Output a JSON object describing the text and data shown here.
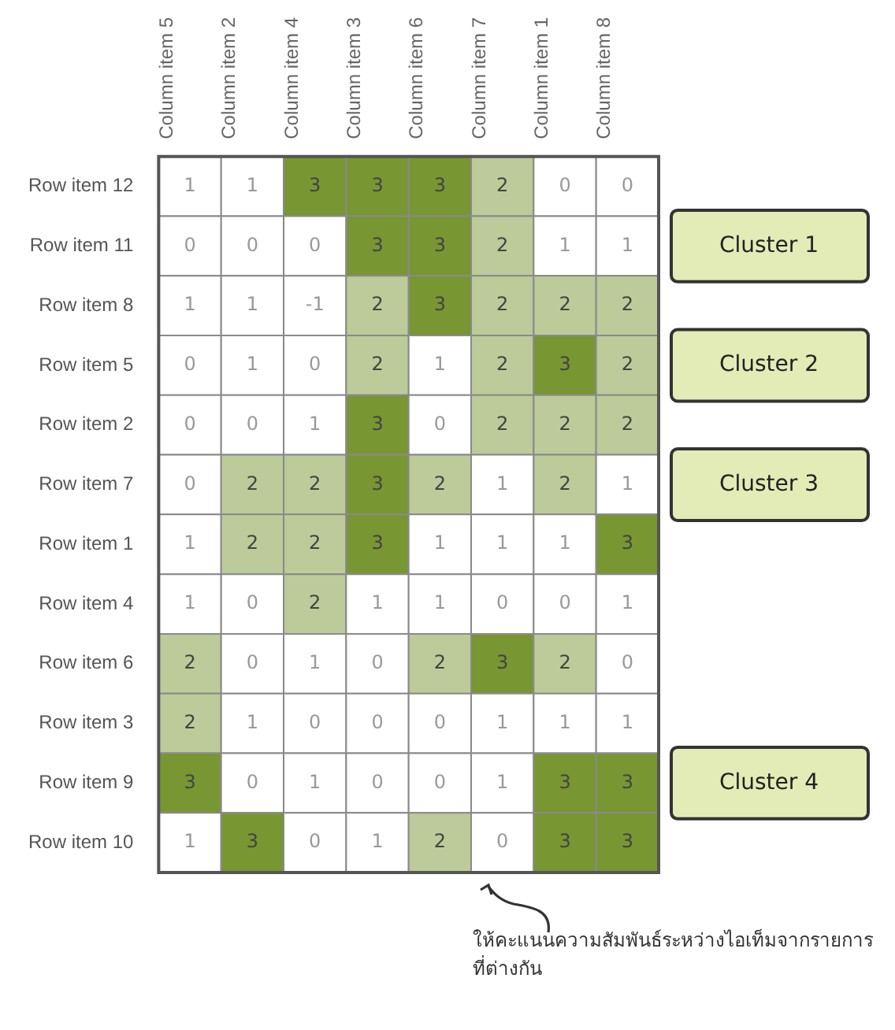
{
  "chart_data": {
    "type": "heatmap",
    "categories": [
      "Column item 5",
      "Column item 2",
      "Column item 4",
      "Column item 3",
      "Column item 6",
      "Column item 7",
      "Column item 1",
      "Column item 8"
    ],
    "y_categories": [
      "Row item 12",
      "Row item 11",
      "Row item 8",
      "Row item 5",
      "Row item 2",
      "Row item 7",
      "Row item 1",
      "Row item 4",
      "Row item 6",
      "Row item 3",
      "Row item 9",
      "Row item 10"
    ],
    "cells": [
      [
        1,
        1,
        3,
        3,
        3,
        2,
        0,
        0
      ],
      [
        0,
        0,
        0,
        3,
        3,
        2,
        1,
        1
      ],
      [
        1,
        1,
        -1,
        2,
        3,
        2,
        2,
        2
      ],
      [
        0,
        1,
        0,
        2,
        1,
        2,
        3,
        2
      ],
      [
        0,
        0,
        1,
        3,
        0,
        2,
        2,
        2
      ],
      [
        0,
        2,
        2,
        3,
        2,
        1,
        2,
        1
      ],
      [
        1,
        2,
        2,
        3,
        1,
        1,
        1,
        3
      ],
      [
        1,
        0,
        2,
        1,
        1,
        0,
        0,
        1
      ],
      [
        2,
        0,
        1,
        0,
        2,
        3,
        2,
        0
      ],
      [
        2,
        1,
        0,
        0,
        0,
        1,
        1,
        1
      ],
      [
        3,
        0,
        1,
        0,
        0,
        1,
        3,
        3
      ],
      [
        1,
        3,
        0,
        1,
        2,
        0,
        3,
        3
      ]
    ],
    "data_labels": true,
    "annotations": [
      "Cluster 1",
      "Cluster 2",
      "Cluster 3",
      "Cluster 4",
      "ให้คะแนนความสัมพันธ์ระหว่างไอเท็มจากรายการที่ต่างกัน"
    ]
  }
}
